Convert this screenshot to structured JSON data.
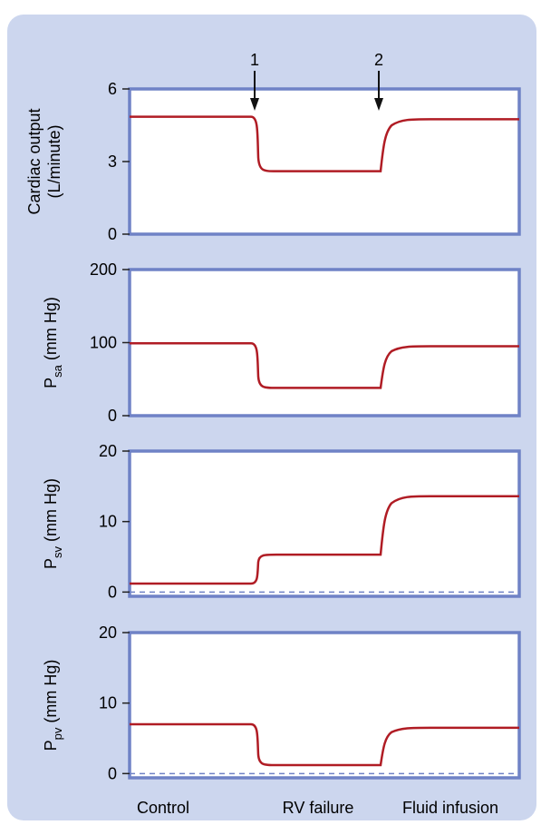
{
  "chart_data": {
    "type": "line",
    "x_categories": [
      "Control",
      "RV failure",
      "Fluid infusion"
    ],
    "events": [
      {
        "label": "1",
        "at": "RV failure"
      },
      {
        "label": "2",
        "at": "Fluid infusion"
      }
    ],
    "panels": [
      {
        "id": "co",
        "ylabel_lines": [
          "Cardiac output",
          "(L/minute)"
        ],
        "ylim": [
          0,
          6
        ],
        "yticks": [
          0,
          3,
          6
        ],
        "baseline_dashed": false,
        "series": [
          {
            "values": [
              4.85,
              2.6,
              4.75
            ]
          }
        ]
      },
      {
        "id": "psa",
        "ylabel_main": "P",
        "ylabel_sub": "sa",
        "ylabel_tail": " (mm Hg)",
        "ylim": [
          0,
          200
        ],
        "yticks": [
          0,
          100,
          200
        ],
        "baseline_dashed": false,
        "series": [
          {
            "values": [
              99,
              38,
              95
            ]
          }
        ]
      },
      {
        "id": "psv",
        "ylabel_main": "P",
        "ylabel_sub": "sv",
        "ylabel_tail": " (mm Hg)",
        "ylim": [
          -0.6,
          20
        ],
        "yticks": [
          0,
          10,
          20
        ],
        "baseline_dashed": true,
        "series": [
          {
            "values": [
              1.2,
              5.3,
              13.6
            ]
          }
        ]
      },
      {
        "id": "ppv",
        "ylabel_main": "P",
        "ylabel_sub": "pv",
        "ylabel_tail": " (mm Hg)",
        "ylim": [
          -0.6,
          20
        ],
        "yticks": [
          0,
          10,
          20
        ],
        "baseline_dashed": true,
        "series": [
          {
            "values": [
              7.0,
              1.2,
              6.5
            ]
          }
        ]
      }
    ]
  },
  "colors": {
    "background_panel": "#ccd6ee",
    "frame": "#6f82c6",
    "curve": "#b01c24",
    "dashed_baseline": "#6f82c6"
  }
}
